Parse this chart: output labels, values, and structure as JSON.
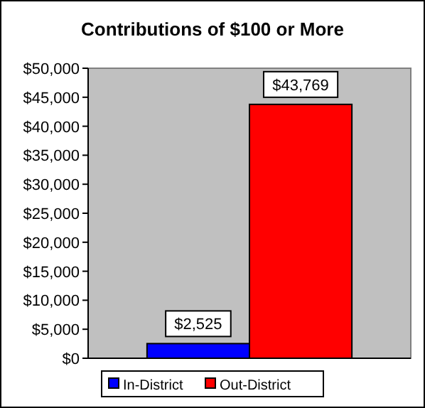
{
  "chart_data": {
    "type": "bar",
    "title": "Contributions of $100 or More",
    "categories": [
      null
    ],
    "series": [
      {
        "name": "In-District",
        "color": "#0000ff",
        "values": [
          2525
        ]
      },
      {
        "name": "Out-District",
        "color": "#ff0000",
        "values": [
          43769
        ]
      }
    ],
    "value_labels": [
      [
        "$2,525"
      ],
      [
        "$43,769"
      ]
    ],
    "ylim": [
      0,
      50000
    ],
    "yticks": [
      {
        "value": 0,
        "label": "$0"
      },
      {
        "value": 5000,
        "label": "$5,000"
      },
      {
        "value": 10000,
        "label": "$10,000"
      },
      {
        "value": 15000,
        "label": "$15,000"
      },
      {
        "value": 20000,
        "label": "$20,000"
      },
      {
        "value": 25000,
        "label": "$25,000"
      },
      {
        "value": 30000,
        "label": "$30,000"
      },
      {
        "value": 35000,
        "label": "$35,000"
      },
      {
        "value": 40000,
        "label": "$40,000"
      },
      {
        "value": 45000,
        "label": "$45,000"
      },
      {
        "value": 50000,
        "label": "$50,000"
      }
    ],
    "grid": false,
    "legend": "bottom"
  }
}
